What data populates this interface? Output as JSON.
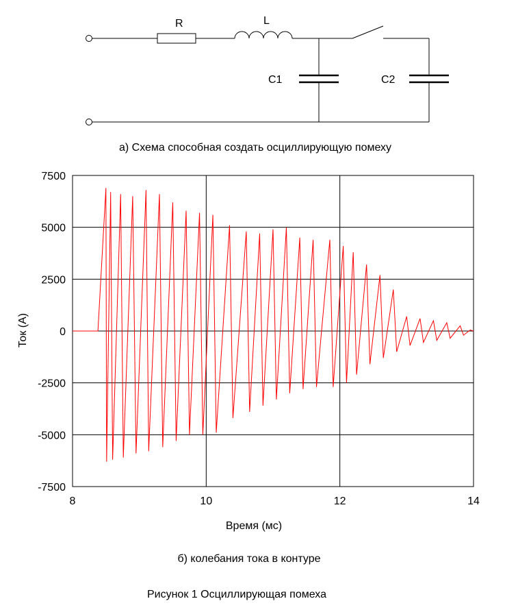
{
  "schematic": {
    "resistor_label": "R",
    "inductor_label": "L",
    "c1_label": "C1",
    "c2_label": "C2",
    "caption": "а) Схема способная создать осциллирующую помеху"
  },
  "chart_caption": "б) колебания тока в контуре",
  "figure_caption": "Рисунок 1 Осциллирующая помеха",
  "chart_data": {
    "type": "line",
    "title": "",
    "xlabel": "Время (мс)",
    "ylabel": "Ток (А)",
    "xlim": [
      8,
      14
    ],
    "ylim": [
      -7500,
      7500
    ],
    "xticks": [
      8,
      10,
      12,
      14
    ],
    "yticks": [
      7500,
      5000,
      2500,
      0,
      -2500,
      -5000,
      -7500
    ],
    "grid": true,
    "series": [
      {
        "color": "#ff0000",
        "description_points": [
          [
            8.0,
            0
          ],
          [
            8.38,
            0
          ],
          [
            8.5,
            6900
          ],
          [
            8.51,
            -6300
          ],
          [
            8.57,
            6700
          ],
          [
            8.6,
            -6200
          ],
          [
            8.72,
            6600
          ],
          [
            8.76,
            -6100
          ],
          [
            8.9,
            6500
          ],
          [
            8.95,
            -5900
          ],
          [
            9.1,
            6800
          ],
          [
            9.14,
            -5800
          ],
          [
            9.3,
            6600
          ],
          [
            9.35,
            -5600
          ],
          [
            9.5,
            6200
          ],
          [
            9.55,
            -5300
          ],
          [
            9.7,
            5800
          ],
          [
            9.75,
            -5000
          ],
          [
            9.9,
            5700
          ],
          [
            9.95,
            -5000
          ],
          [
            10.1,
            5600
          ],
          [
            10.15,
            -4900
          ],
          [
            10.35,
            5100
          ],
          [
            10.4,
            -4200
          ],
          [
            10.6,
            4800
          ],
          [
            10.65,
            -3900
          ],
          [
            10.8,
            4700
          ],
          [
            10.85,
            -3600
          ],
          [
            11.0,
            4900
          ],
          [
            11.05,
            -3300
          ],
          [
            11.2,
            5000
          ],
          [
            11.25,
            -3000
          ],
          [
            11.4,
            4500
          ],
          [
            11.45,
            -2800
          ],
          [
            11.6,
            4400
          ],
          [
            11.65,
            -2700
          ],
          [
            11.85,
            4400
          ],
          [
            11.9,
            -2700
          ],
          [
            12.05,
            4100
          ],
          [
            12.1,
            -2500
          ],
          [
            12.2,
            3800
          ],
          [
            12.25,
            -2100
          ],
          [
            12.4,
            3200
          ],
          [
            12.45,
            -1600
          ],
          [
            12.6,
            2700
          ],
          [
            12.65,
            -1300
          ],
          [
            12.8,
            2000
          ],
          [
            12.85,
            -1000
          ],
          [
            13.0,
            700
          ],
          [
            13.05,
            -700
          ],
          [
            13.2,
            600
          ],
          [
            13.25,
            -550
          ],
          [
            13.4,
            500
          ],
          [
            13.45,
            -450
          ],
          [
            13.6,
            400
          ],
          [
            13.65,
            -350
          ],
          [
            13.8,
            250
          ],
          [
            13.85,
            -200
          ],
          [
            13.95,
            50
          ],
          [
            14.0,
            0
          ]
        ]
      }
    ]
  }
}
